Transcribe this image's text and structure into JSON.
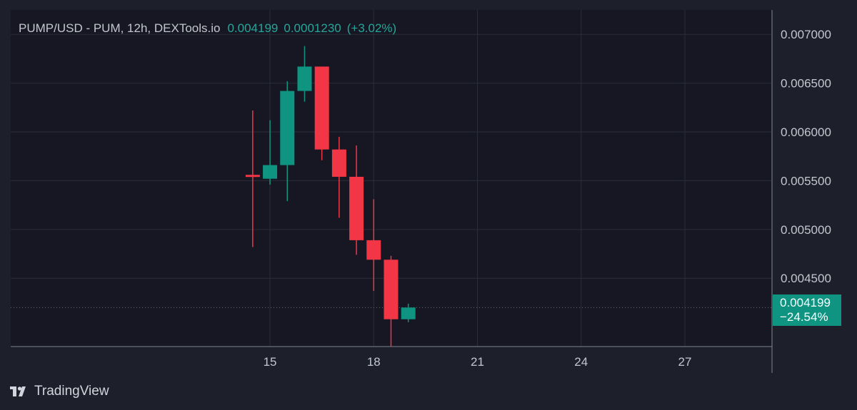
{
  "legend": {
    "symbol": "PUMP/USD - PUM, 12h, DEXTools.io",
    "last": "0.004199",
    "change": "0.0001230",
    "change_pct": "(+3.02%)"
  },
  "price_tag": {
    "value": "0.004199",
    "pct": "−24.54%"
  },
  "brand": {
    "name": "TradingView"
  },
  "colors": {
    "up": "#0f9482",
    "down": "#f23645",
    "background": "#161722",
    "grid": "#2a2d39",
    "axis_text": "#c3c6ce"
  },
  "chart_data": {
    "type": "candlestick",
    "title": "PUMP/USD - PUM, 12h, DEXTools.io",
    "x_ticks": [
      {
        "label": "15",
        "day": 15
      },
      {
        "label": "18",
        "day": 18
      },
      {
        "label": "21",
        "day": 21
      },
      {
        "label": "24",
        "day": 24
      },
      {
        "label": "27",
        "day": 27
      }
    ],
    "y_ticks": [
      {
        "label": "0.007000",
        "value": 0.007
      },
      {
        "label": "0.006500",
        "value": 0.0065
      },
      {
        "label": "0.006000",
        "value": 0.006
      },
      {
        "label": "0.005500",
        "value": 0.0055
      },
      {
        "label": "0.005000",
        "value": 0.005
      },
      {
        "label": "0.004500",
        "value": 0.0045
      }
    ],
    "x_range": [
      7.5,
      29.5
    ],
    "y_range": [
      0.0038,
      0.00725
    ],
    "grid": true,
    "last_price": 0.004199,
    "candles": [
      {
        "day": 14.5,
        "open": 0.00556,
        "high": 0.00622,
        "low": 0.00482,
        "close": 0.00554
      },
      {
        "day": 15.0,
        "open": 0.00552,
        "high": 0.00612,
        "low": 0.00546,
        "close": 0.00566
      },
      {
        "day": 15.5,
        "open": 0.00566,
        "high": 0.00652,
        "low": 0.00529,
        "close": 0.00642
      },
      {
        "day": 16.0,
        "open": 0.00642,
        "high": 0.00688,
        "low": 0.00631,
        "close": 0.00667
      },
      {
        "day": 16.5,
        "open": 0.00667,
        "high": 0.00667,
        "low": 0.00571,
        "close": 0.00582
      },
      {
        "day": 17.0,
        "open": 0.00582,
        "high": 0.00595,
        "low": 0.00512,
        "close": 0.00554
      },
      {
        "day": 17.5,
        "open": 0.00554,
        "high": 0.00586,
        "low": 0.00474,
        "close": 0.00489
      },
      {
        "day": 18.0,
        "open": 0.00489,
        "high": 0.00531,
        "low": 0.00437,
        "close": 0.00469
      },
      {
        "day": 18.5,
        "open": 0.00469,
        "high": 0.00473,
        "low": 0.0038,
        "close": 0.00408
      },
      {
        "day": 19.0,
        "open": 0.00408,
        "high": 0.00424,
        "low": 0.00405,
        "close": 0.0042
      }
    ]
  }
}
